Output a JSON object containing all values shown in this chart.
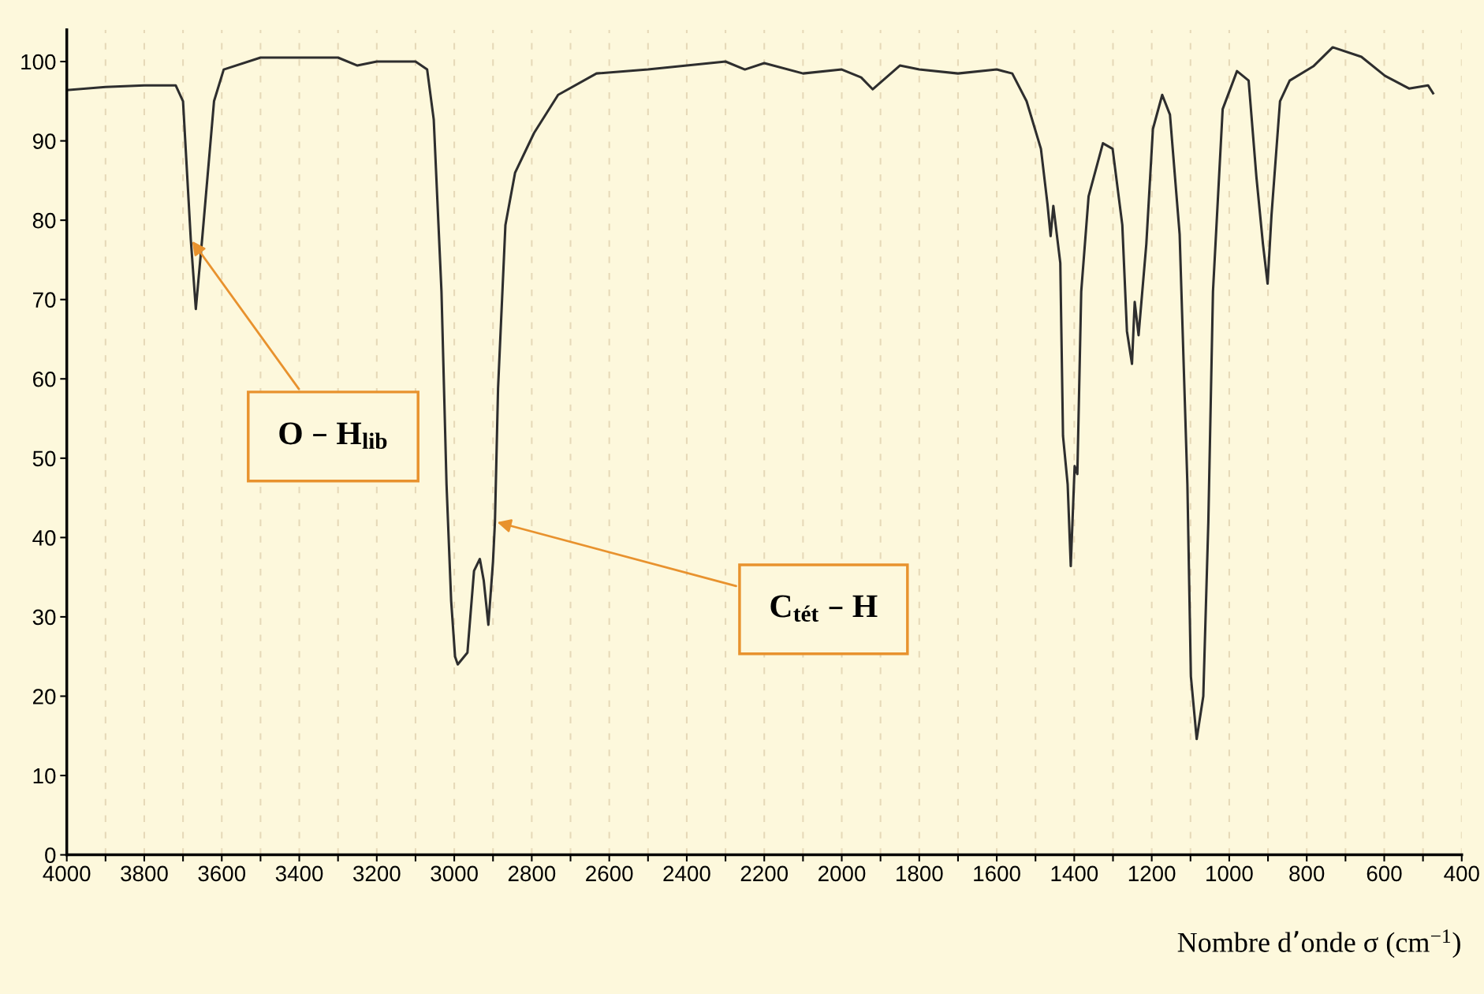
{
  "chart_data": {
    "type": "line",
    "xlabel": "Nombre d’onde σ (cm$^{−1}$)",
    "x": [
      4000,
      3900,
      3800,
      3719,
      3700,
      3680,
      3667,
      3650,
      3620,
      3595,
      3500,
      3400,
      3300,
      3250,
      3200,
      3100,
      3070,
      3053,
      3033,
      3020,
      3008,
      2998,
      2991,
      2966,
      2949,
      2934,
      2924,
      2912,
      2900,
      2895,
      2887,
      2868,
      2843,
      2794,
      2732,
      2633,
      2500,
      2400,
      2300,
      2250,
      2200,
      2100,
      2000,
      1950,
      1920,
      1850,
      1800,
      1700,
      1600,
      1560,
      1523,
      1486,
      1469,
      1461,
      1454,
      1436,
      1429,
      1417,
      1409,
      1399,
      1392,
      1382,
      1363,
      1326,
      1301,
      1276,
      1264,
      1251,
      1244,
      1234,
      1214,
      1197,
      1173,
      1153,
      1128,
      1108,
      1099,
      1084,
      1067,
      1054,
      1042,
      1017,
      980,
      950,
      930,
      913,
      901,
      891,
      869,
      844,
      783,
      733,
      659,
      598,
      536,
      487,
      474
    ],
    "series": [
      {
        "color": "#2e2e2e",
        "values": [
          96.4,
          96.8,
          97,
          97,
          95,
          77.6,
          68.8,
          78,
          95,
          99,
          100.5,
          100.5,
          100.5,
          99.5,
          100,
          100,
          99,
          92.7,
          71,
          46.7,
          32,
          25,
          24,
          25.5,
          35.8,
          37.3,
          34.6,
          29,
          37,
          42,
          58.8,
          79.4,
          86,
          91,
          95.8,
          98.5,
          99,
          99.5,
          100,
          99,
          99.8,
          98.5,
          99,
          98,
          96.5,
          99.5,
          99,
          98.5,
          99,
          98.5,
          95,
          89,
          82,
          78,
          81.8,
          74.6,
          52.8,
          46.7,
          36.4,
          49,
          48,
          71,
          83,
          89.7,
          89,
          79.4,
          66,
          61.9,
          69.7,
          65.5,
          77,
          91.5,
          95.8,
          93.3,
          78.2,
          46.7,
          22.5,
          14.6,
          20,
          41.9,
          71,
          94,
          98.8,
          97.6,
          85.5,
          77,
          72,
          80.6,
          95,
          97.6,
          99.4,
          101.8,
          100.6,
          98.2,
          96.6,
          97,
          96
        ]
      }
    ],
    "xlim": [
      4000,
      400
    ],
    "ylim": [
      0,
      104
    ],
    "xticks": [
      4000,
      {
        "value": 3900,
        "label": null
      },
      3800,
      {
        "value": 3700,
        "label": null
      },
      3600,
      {
        "value": 3500,
        "label": null
      },
      3400,
      {
        "value": 3300,
        "label": null
      },
      3200,
      {
        "value": 3100,
        "label": null
      },
      3000,
      {
        "value": 2900,
        "label": null
      },
      2800,
      {
        "value": 2700,
        "label": null
      },
      2600,
      {
        "value": 2500,
        "label": null
      },
      2400,
      {
        "value": 2300,
        "label": null
      },
      2200,
      {
        "value": 2100,
        "label": null
      },
      2000,
      {
        "value": 1900,
        "label": null
      },
      1800,
      {
        "value": 1700,
        "label": null
      },
      1600,
      {
        "value": 1500,
        "label": null
      },
      1400,
      {
        "value": 1300,
        "label": null
      },
      1200,
      {
        "value": 1100,
        "label": null
      },
      1000,
      {
        "value": 900,
        "label": null
      },
      800,
      {
        "value": 700,
        "label": null
      },
      600,
      {
        "value": 500,
        "label": null
      },
      400
    ],
    "yticks": [
      0,
      10,
      20,
      30,
      40,
      50,
      60,
      70,
      80,
      90,
      100
    ],
    "grid": "x",
    "annotations": [
      {
        "text": "O – H$_{lib}$",
        "x": 3680,
        "y": 77.6
      },
      {
        "text": "C$_{tét}$ – H",
        "x": 2895,
        "y": 42
      }
    ]
  }
}
